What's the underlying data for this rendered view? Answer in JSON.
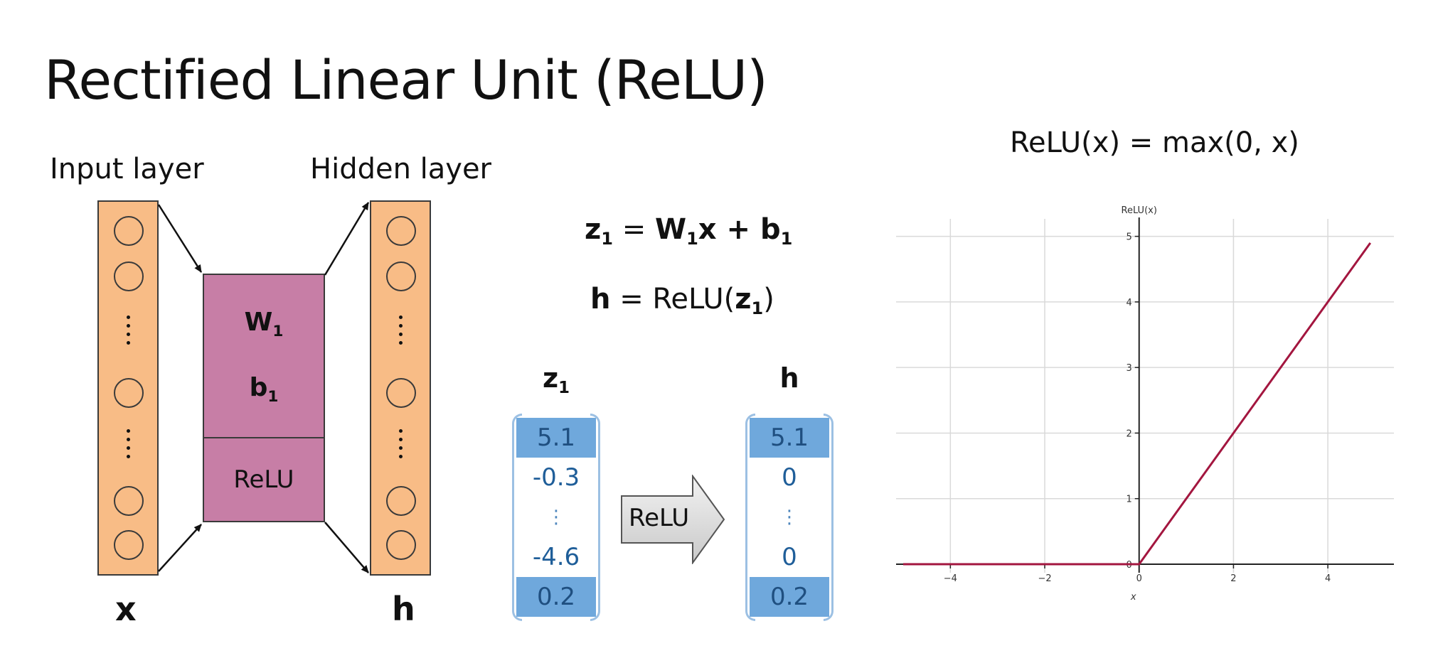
{
  "title": "Rectified Linear Unit (ReLU)",
  "network": {
    "input_label": "Input layer",
    "hidden_label": "Hidden layer",
    "input_var": "x",
    "hidden_var": "h",
    "weight_symbol": "W",
    "bias_symbol": "b",
    "subscript": "1",
    "activation_label": "ReLU"
  },
  "equations": {
    "eq1": {
      "lhs": "z",
      "sub": "1",
      "eq": " = ",
      "w": "W",
      "wsub": "1",
      "x": "x + ",
      "b": "b",
      "bsub": "1"
    },
    "eq2": {
      "lhs": "h",
      "mid": " = ReLU(",
      "z": "z",
      "zsub": "1",
      "close": ")"
    }
  },
  "vectors": {
    "z_label": "z",
    "z_sub": "1",
    "h_label": "h",
    "z_values": [
      "5.1",
      "-0.3",
      "⋮",
      "-4.6",
      "0.2"
    ],
    "h_values": [
      "5.1",
      "0",
      "⋮",
      "0",
      "0.2"
    ],
    "arrow_label": "ReLU",
    "highlight_color": "#6fa8dc"
  },
  "chart_data": {
    "type": "line",
    "title": "ReLU(x) = max(0, x)",
    "ylabel": "ReLU(x)",
    "xlabel": "x",
    "xlim": [
      -5,
      5.4
    ],
    "ylim": [
      0,
      5.05
    ],
    "xticks": [
      -4,
      -2,
      0,
      2,
      4
    ],
    "xtick_labels": [
      "−4",
      "−2",
      "0",
      "2",
      "4"
    ],
    "yticks": [
      0,
      1,
      2,
      3,
      4,
      5
    ],
    "ytick_labels": [
      "0",
      "1",
      "2",
      "3",
      "4",
      "5"
    ],
    "grid": true,
    "line_color": "#a3163f",
    "series": [
      {
        "x": [
          -5,
          0,
          4.9
        ],
        "y": [
          0,
          0,
          4.9
        ]
      }
    ]
  }
}
